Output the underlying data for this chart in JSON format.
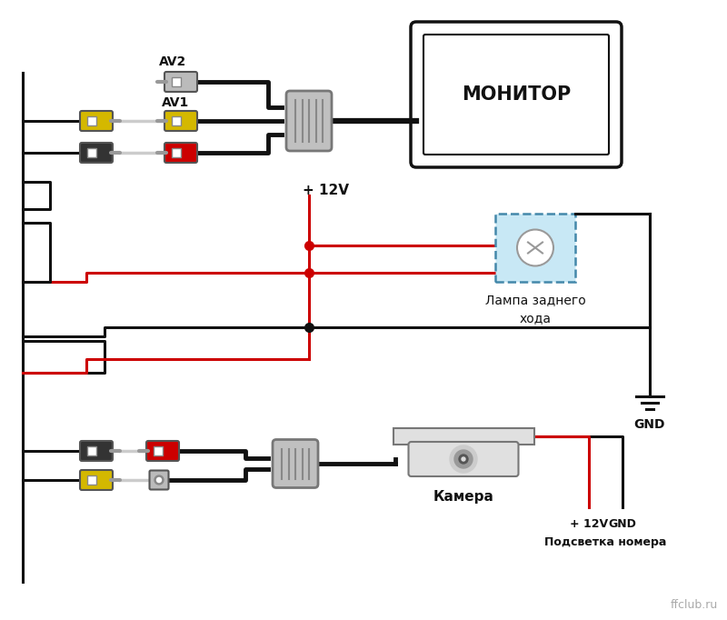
{
  "bg_color": "#ffffff",
  "fig_width": 8.0,
  "fig_height": 6.82,
  "dpi": 100,
  "monitor_label": "МОНИТОР",
  "lamp_label": "Лампа заднего\nхода",
  "gnd_label": "GND",
  "camera_label": "Камера",
  "power_label": "+ 12V",
  "power_label2": "+ 12V",
  "gnd_label2": "GND",
  "plate_label": "Подсветка номера",
  "av1_label": "AV1",
  "av2_label": "AV2",
  "wire_black": "#111111",
  "wire_red": "#cc0000",
  "connector_yellow": "#d4b800",
  "connector_red": "#cc0000",
  "connector_gray": "#bbbbbb",
  "lamp_bg": "#c8e8f5",
  "lamp_border": "#4488aa",
  "watermark": "ffclub.ru",
  "lw_wire": 2.2,
  "lw_thick": 3.5
}
